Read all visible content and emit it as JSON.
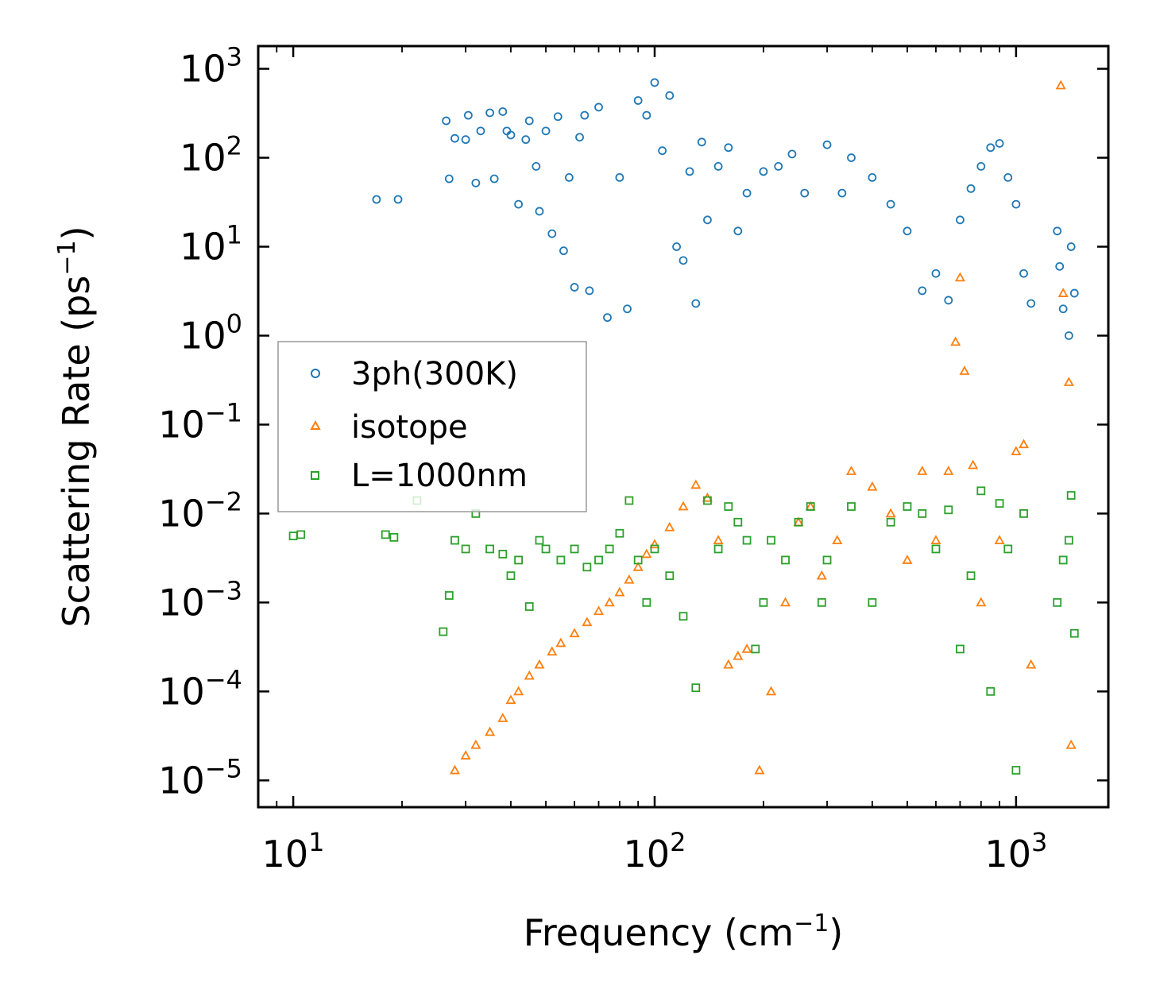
{
  "chart_data": {
    "type": "scatter",
    "xscale": "log",
    "yscale": "log",
    "xlim": [
      8,
      1800
    ],
    "ylim": [
      5e-06,
      1800
    ],
    "xlabel": {
      "main": "Frequency (cm",
      "sup": "−1",
      "end": ")"
    },
    "ylabel": {
      "main": "Scattering Rate (ps",
      "sup": "−1",
      "end": ")"
    },
    "xticks": [
      {
        "value": 10,
        "base": "10",
        "exp": "1"
      },
      {
        "value": 100,
        "base": "10",
        "exp": "2"
      },
      {
        "value": 1000,
        "base": "10",
        "exp": "3"
      }
    ],
    "yticks": [
      {
        "value": 1e-05,
        "base": "10",
        "exp": "−5"
      },
      {
        "value": 0.0001,
        "base": "10",
        "exp": "−4"
      },
      {
        "value": 0.001,
        "base": "10",
        "exp": "−3"
      },
      {
        "value": 0.01,
        "base": "10",
        "exp": "−2"
      },
      {
        "value": 0.1,
        "base": "10",
        "exp": "−1"
      },
      {
        "value": 1,
        "base": "10",
        "exp": "0"
      },
      {
        "value": 10,
        "base": "10",
        "exp": "1"
      },
      {
        "value": 100,
        "base": "10",
        "exp": "2"
      },
      {
        "value": 1000,
        "base": "10",
        "exp": "3"
      }
    ],
    "legend_position": "center-left",
    "series": [
      {
        "name": "3ph(300K)",
        "marker": "circle",
        "color": "#1f77b4",
        "points": [
          [
            17,
            34
          ],
          [
            19.5,
            34
          ],
          [
            26.5,
            260
          ],
          [
            27,
            58
          ],
          [
            28,
            165
          ],
          [
            30,
            160
          ],
          [
            30.5,
            300
          ],
          [
            32,
            52
          ],
          [
            33,
            200
          ],
          [
            35,
            320
          ],
          [
            36,
            58
          ],
          [
            38,
            330
          ],
          [
            39,
            200
          ],
          [
            40,
            180
          ],
          [
            42,
            30
          ],
          [
            44,
            160
          ],
          [
            45,
            260
          ],
          [
            47,
            80
          ],
          [
            48,
            25
          ],
          [
            50,
            200
          ],
          [
            52,
            14
          ],
          [
            54,
            290
          ],
          [
            56,
            9
          ],
          [
            58,
            60
          ],
          [
            60,
            3.5
          ],
          [
            62,
            170
          ],
          [
            64,
            300
          ],
          [
            66,
            3.2
          ],
          [
            70,
            370
          ],
          [
            74,
            1.6
          ],
          [
            80,
            60
          ],
          [
            84,
            2.0
          ],
          [
            90,
            440
          ],
          [
            95,
            300
          ],
          [
            100,
            700
          ],
          [
            105,
            120
          ],
          [
            110,
            500
          ],
          [
            115,
            10
          ],
          [
            120,
            7
          ],
          [
            125,
            70
          ],
          [
            130,
            2.3
          ],
          [
            135,
            150
          ],
          [
            140,
            20
          ],
          [
            150,
            80
          ],
          [
            160,
            130
          ],
          [
            170,
            15
          ],
          [
            180,
            40
          ],
          [
            200,
            70
          ],
          [
            220,
            80
          ],
          [
            240,
            110
          ],
          [
            260,
            40
          ],
          [
            300,
            140
          ],
          [
            330,
            40
          ],
          [
            350,
            100
          ],
          [
            400,
            60
          ],
          [
            450,
            30
          ],
          [
            500,
            15
          ],
          [
            550,
            3.2
          ],
          [
            600,
            5
          ],
          [
            650,
            2.5
          ],
          [
            700,
            20
          ],
          [
            750,
            45
          ],
          [
            800,
            80
          ],
          [
            850,
            130
          ],
          [
            900,
            145
          ],
          [
            950,
            60
          ],
          [
            1000,
            30
          ],
          [
            1050,
            5
          ],
          [
            1100,
            2.3
          ],
          [
            1300,
            15
          ],
          [
            1320,
            6
          ],
          [
            1350,
            2
          ],
          [
            1400,
            1
          ],
          [
            1420,
            10
          ],
          [
            1450,
            3
          ]
        ]
      },
      {
        "name": "isotope",
        "marker": "triangle",
        "color": "#ff7f0e",
        "points": [
          [
            28,
            1.3e-05
          ],
          [
            30,
            1.9e-05
          ],
          [
            32,
            2.5e-05
          ],
          [
            35,
            3.5e-05
          ],
          [
            38,
            5e-05
          ],
          [
            40,
            8e-05
          ],
          [
            42,
            0.0001
          ],
          [
            45,
            0.00015
          ],
          [
            48,
            0.0002
          ],
          [
            52,
            0.00028
          ],
          [
            55,
            0.00035
          ],
          [
            60,
            0.00045
          ],
          [
            65,
            0.0006
          ],
          [
            70,
            0.0008
          ],
          [
            75,
            0.001
          ],
          [
            80,
            0.0013
          ],
          [
            85,
            0.0018
          ],
          [
            90,
            0.0025
          ],
          [
            95,
            0.0035
          ],
          [
            100,
            0.0045
          ],
          [
            110,
            0.007
          ],
          [
            120,
            0.012
          ],
          [
            130,
            0.021
          ],
          [
            140,
            0.015
          ],
          [
            150,
            0.005
          ],
          [
            160,
            0.0002
          ],
          [
            170,
            0.00025
          ],
          [
            180,
            0.0003
          ],
          [
            195,
            1.3e-05
          ],
          [
            210,
            0.0001
          ],
          [
            230,
            0.001
          ],
          [
            250,
            0.008
          ],
          [
            270,
            0.012
          ],
          [
            290,
            0.002
          ],
          [
            320,
            0.005
          ],
          [
            350,
            0.03
          ],
          [
            400,
            0.02
          ],
          [
            450,
            0.01
          ],
          [
            500,
            0.003
          ],
          [
            550,
            0.03
          ],
          [
            600,
            0.005
          ],
          [
            650,
            0.03
          ],
          [
            680,
            0.85
          ],
          [
            700,
            4.5
          ],
          [
            720,
            0.4
          ],
          [
            760,
            0.035
          ],
          [
            800,
            0.001
          ],
          [
            900,
            0.005
          ],
          [
            1000,
            0.05
          ],
          [
            1050,
            0.06
          ],
          [
            1100,
            0.0002
          ],
          [
            1330,
            650
          ],
          [
            1350,
            3
          ],
          [
            1400,
            0.3
          ],
          [
            1420,
            2.5e-05
          ]
        ]
      },
      {
        "name": "L=1000nm",
        "marker": "square",
        "color": "#2ca02c",
        "points": [
          [
            10,
            0.0056
          ],
          [
            10.5,
            0.0058
          ],
          [
            18,
            0.0058
          ],
          [
            19,
            0.0054
          ],
          [
            22,
            0.014
          ],
          [
            26,
            0.00047
          ],
          [
            27,
            0.0012
          ],
          [
            28,
            0.005
          ],
          [
            30,
            0.004
          ],
          [
            32,
            0.01
          ],
          [
            35,
            0.004
          ],
          [
            38,
            0.0035
          ],
          [
            40,
            0.002
          ],
          [
            42,
            0.003
          ],
          [
            45,
            0.0009
          ],
          [
            48,
            0.005
          ],
          [
            50,
            0.004
          ],
          [
            55,
            0.003
          ],
          [
            60,
            0.004
          ],
          [
            65,
            0.0025
          ],
          [
            70,
            0.003
          ],
          [
            75,
            0.004
          ],
          [
            80,
            0.006
          ],
          [
            85,
            0.014
          ],
          [
            90,
            0.003
          ],
          [
            95,
            0.001
          ],
          [
            100,
            0.004
          ],
          [
            110,
            0.002
          ],
          [
            120,
            0.0007
          ],
          [
            130,
            0.00011
          ],
          [
            140,
            0.014
          ],
          [
            150,
            0.004
          ],
          [
            160,
            0.012
          ],
          [
            170,
            0.008
          ],
          [
            180,
            0.005
          ],
          [
            190,
            0.0003
          ],
          [
            200,
            0.001
          ],
          [
            210,
            0.005
          ],
          [
            230,
            0.003
          ],
          [
            250,
            0.008
          ],
          [
            270,
            0.012
          ],
          [
            290,
            0.001
          ],
          [
            300,
            0.003
          ],
          [
            350,
            0.012
          ],
          [
            400,
            0.001
          ],
          [
            450,
            0.008
          ],
          [
            500,
            0.012
          ],
          [
            550,
            0.01
          ],
          [
            600,
            0.004
          ],
          [
            650,
            0.011
          ],
          [
            700,
            0.0003
          ],
          [
            750,
            0.002
          ],
          [
            800,
            0.018
          ],
          [
            850,
            0.0001
          ],
          [
            900,
            0.013
          ],
          [
            950,
            0.004
          ],
          [
            1000,
            1.3e-05
          ],
          [
            1050,
            0.01
          ],
          [
            1300,
            0.001
          ],
          [
            1350,
            0.003
          ],
          [
            1400,
            0.005
          ],
          [
            1420,
            0.016
          ],
          [
            1450,
            0.00045
          ]
        ]
      }
    ]
  }
}
